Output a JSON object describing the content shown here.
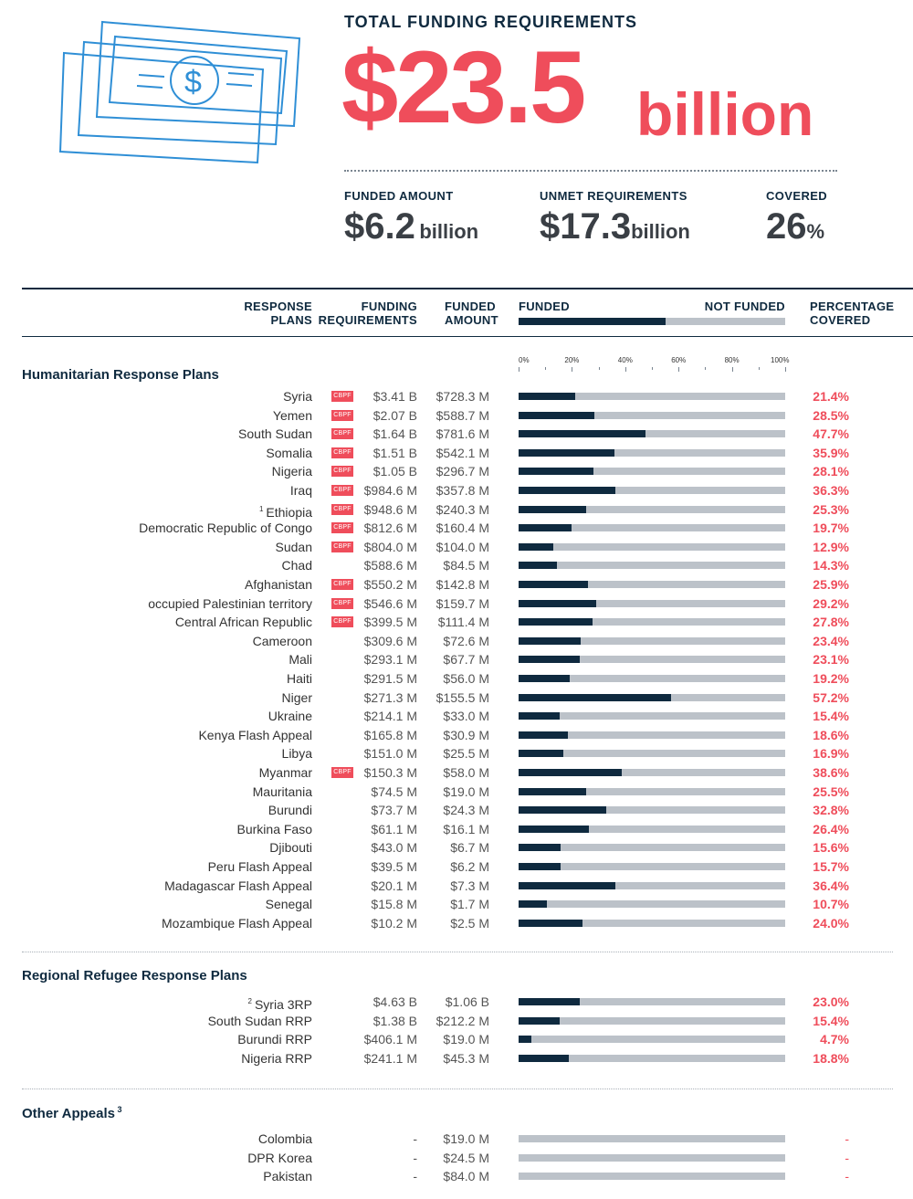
{
  "header": {
    "title": "TOTAL FUNDING REQUIREMENTS",
    "total_value": "$23.5",
    "total_unit": "billion",
    "stats": [
      {
        "label": "FUNDED AMOUNT",
        "value": "$6.2",
        "unit": "billion"
      },
      {
        "label": "UNMET REQUIREMENTS",
        "value": "$17.3",
        "unit": "billion"
      },
      {
        "label": "COVERED",
        "value": "26",
        "unit": "%"
      }
    ]
  },
  "columns": {
    "plans": [
      "RESPONSE",
      "PLANS"
    ],
    "requirements": [
      "FUNDING",
      "REQUIREMENTS"
    ],
    "funded": [
      "FUNDED",
      "AMOUNT"
    ],
    "funded_legend": "FUNDED",
    "not_funded_legend": "NOT FUNDED",
    "coverage": [
      "PERCENTAGE",
      "COVERED"
    ],
    "legend_funded_fraction": 0.55
  },
  "badge_label": "CBPF",
  "colors": {
    "accent": "#ef4d5b",
    "navy": "#0f2a3f",
    "bar_bg": "#bcc2c9"
  },
  "chart_data": {
    "type": "bar",
    "orientation": "horizontal",
    "x_ticks": [
      "0%",
      "20%",
      "40%",
      "60%",
      "80%",
      "100%"
    ],
    "xlim": [
      0,
      100
    ],
    "sections": [
      {
        "title": "Humanitarian Response Plans",
        "title_sup": "",
        "rows": [
          {
            "name": "Syria",
            "sup": "",
            "cbpf": true,
            "requirements": "$3.41 B",
            "funded": "$728.3 M",
            "pct": 21.4,
            "pct_label": "21.4%"
          },
          {
            "name": "Yemen",
            "sup": "",
            "cbpf": true,
            "requirements": "$2.07 B",
            "funded": "$588.7 M",
            "pct": 28.5,
            "pct_label": "28.5%"
          },
          {
            "name": "South Sudan",
            "sup": "",
            "cbpf": true,
            "requirements": "$1.64 B",
            "funded": "$781.6 M",
            "pct": 47.7,
            "pct_label": "47.7%"
          },
          {
            "name": "Somalia",
            "sup": "",
            "cbpf": true,
            "requirements": "$1.51 B",
            "funded": "$542.1 M",
            "pct": 35.9,
            "pct_label": "35.9%"
          },
          {
            "name": "Nigeria",
            "sup": "",
            "cbpf": true,
            "requirements": "$1.05 B",
            "funded": "$296.7 M",
            "pct": 28.1,
            "pct_label": "28.1%"
          },
          {
            "name": "Iraq",
            "sup": "",
            "cbpf": true,
            "requirements": "$984.6 M",
            "funded": "$357.8 M",
            "pct": 36.3,
            "pct_label": "36.3%"
          },
          {
            "name": "Ethiopia",
            "sup": "1",
            "cbpf": true,
            "requirements": "$948.6 M",
            "funded": "$240.3 M",
            "pct": 25.3,
            "pct_label": "25.3%"
          },
          {
            "name": "Democratic Republic of Congo",
            "sup": "",
            "cbpf": true,
            "requirements": "$812.6 M",
            "funded": "$160.4 M",
            "pct": 19.7,
            "pct_label": "19.7%"
          },
          {
            "name": "Sudan",
            "sup": "",
            "cbpf": true,
            "requirements": "$804.0 M",
            "funded": "$104.0 M",
            "pct": 12.9,
            "pct_label": "12.9%"
          },
          {
            "name": "Chad",
            "sup": "",
            "cbpf": false,
            "requirements": "$588.6 M",
            "funded": "$84.5 M",
            "pct": 14.3,
            "pct_label": "14.3%"
          },
          {
            "name": "Afghanistan",
            "sup": "",
            "cbpf": true,
            "requirements": "$550.2 M",
            "funded": "$142.8 M",
            "pct": 25.9,
            "pct_label": "25.9%"
          },
          {
            "name": "occupied Palestinian territory",
            "sup": "",
            "cbpf": true,
            "requirements": "$546.6 M",
            "funded": "$159.7 M",
            "pct": 29.2,
            "pct_label": "29.2%"
          },
          {
            "name": "Central African Republic",
            "sup": "",
            "cbpf": true,
            "requirements": "$399.5 M",
            "funded": "$111.4 M",
            "pct": 27.8,
            "pct_label": "27.8%"
          },
          {
            "name": "Cameroon",
            "sup": "",
            "cbpf": false,
            "requirements": "$309.6 M",
            "funded": "$72.6 M",
            "pct": 23.4,
            "pct_label": "23.4%"
          },
          {
            "name": "Mali",
            "sup": "",
            "cbpf": false,
            "requirements": "$293.1 M",
            "funded": "$67.7 M",
            "pct": 23.1,
            "pct_label": "23.1%"
          },
          {
            "name": "Haiti",
            "sup": "",
            "cbpf": false,
            "requirements": "$291.5 M",
            "funded": "$56.0 M",
            "pct": 19.2,
            "pct_label": "19.2%"
          },
          {
            "name": "Niger",
            "sup": "",
            "cbpf": false,
            "requirements": "$271.3 M",
            "funded": "$155.5 M",
            "pct": 57.2,
            "pct_label": "57.2%"
          },
          {
            "name": "Ukraine",
            "sup": "",
            "cbpf": false,
            "requirements": "$214.1 M",
            "funded": "$33.0 M",
            "pct": 15.4,
            "pct_label": "15.4%"
          },
          {
            "name": "Kenya Flash Appeal",
            "sup": "",
            "cbpf": false,
            "requirements": "$165.8 M",
            "funded": "$30.9 M",
            "pct": 18.6,
            "pct_label": "18.6%"
          },
          {
            "name": "Libya",
            "sup": "",
            "cbpf": false,
            "requirements": "$151.0 M",
            "funded": "$25.5 M",
            "pct": 16.9,
            "pct_label": "16.9%"
          },
          {
            "name": "Myanmar",
            "sup": "",
            "cbpf": true,
            "requirements": "$150.3 M",
            "funded": "$58.0 M",
            "pct": 38.6,
            "pct_label": "38.6%"
          },
          {
            "name": "Mauritania",
            "sup": "",
            "cbpf": false,
            "requirements": "$74.5 M",
            "funded": "$19.0 M",
            "pct": 25.5,
            "pct_label": "25.5%"
          },
          {
            "name": "Burundi",
            "sup": "",
            "cbpf": false,
            "requirements": "$73.7 M",
            "funded": "$24.3 M",
            "pct": 32.8,
            "pct_label": "32.8%"
          },
          {
            "name": "Burkina Faso",
            "sup": "",
            "cbpf": false,
            "requirements": "$61.1 M",
            "funded": "$16.1 M",
            "pct": 26.4,
            "pct_label": "26.4%"
          },
          {
            "name": "Djibouti",
            "sup": "",
            "cbpf": false,
            "requirements": "$43.0 M",
            "funded": "$6.7 M",
            "pct": 15.6,
            "pct_label": "15.6%"
          },
          {
            "name": "Peru Flash Appeal",
            "sup": "",
            "cbpf": false,
            "requirements": "$39.5 M",
            "funded": "$6.2 M",
            "pct": 15.7,
            "pct_label": "15.7%"
          },
          {
            "name": "Madagascar Flash Appeal",
            "sup": "",
            "cbpf": false,
            "requirements": "$20.1 M",
            "funded": "$7.3 M",
            "pct": 36.4,
            "pct_label": "36.4%"
          },
          {
            "name": "Senegal",
            "sup": "",
            "cbpf": false,
            "requirements": "$15.8 M",
            "funded": "$1.7 M",
            "pct": 10.7,
            "pct_label": "10.7%"
          },
          {
            "name": "Mozambique Flash Appeal",
            "sup": "",
            "cbpf": false,
            "requirements": "$10.2 M",
            "funded": "$2.5 M",
            "pct": 24.0,
            "pct_label": "24.0%"
          }
        ]
      },
      {
        "title": "Regional Refugee Response Plans",
        "title_sup": "",
        "rows": [
          {
            "name": "Syria 3RP",
            "sup": "2",
            "cbpf": false,
            "requirements": "$4.63 B",
            "funded": "$1.06 B",
            "pct": 23.0,
            "pct_label": "23.0%"
          },
          {
            "name": "South Sudan RRP",
            "sup": "",
            "cbpf": false,
            "requirements": "$1.38 B",
            "funded": "$212.2 M",
            "pct": 15.4,
            "pct_label": "15.4%"
          },
          {
            "name": "Burundi RRP",
            "sup": "",
            "cbpf": false,
            "requirements": "$406.1 M",
            "funded": "$19.0 M",
            "pct": 4.7,
            "pct_label": "4.7%"
          },
          {
            "name": "Nigeria RRP",
            "sup": "",
            "cbpf": false,
            "requirements": "$241.1 M",
            "funded": "$45.3 M",
            "pct": 18.8,
            "pct_label": "18.8%"
          }
        ]
      },
      {
        "title": "Other Appeals",
        "title_sup": "3",
        "rows": [
          {
            "name": "Colombia",
            "sup": "",
            "cbpf": false,
            "requirements": "-",
            "funded": "$19.0 M",
            "pct": null,
            "pct_label": "-"
          },
          {
            "name": "DPR Korea",
            "sup": "",
            "cbpf": false,
            "requirements": "-",
            "funded": "$24.5 M",
            "pct": null,
            "pct_label": "-"
          },
          {
            "name": "Pakistan",
            "sup": "",
            "cbpf": false,
            "requirements": "-",
            "funded": "$84.0 M",
            "pct": null,
            "pct_label": "-"
          }
        ]
      }
    ]
  }
}
